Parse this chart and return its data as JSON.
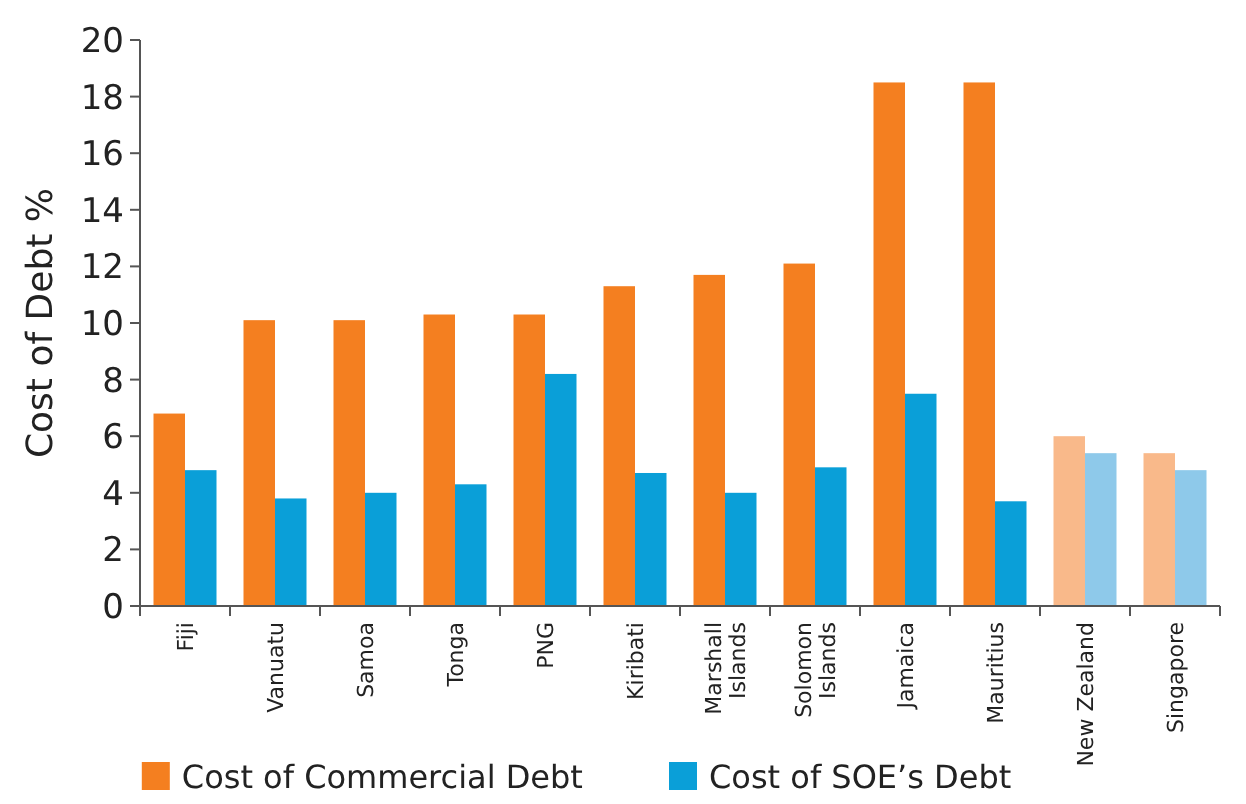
{
  "chart_data": {
    "type": "bar",
    "ylabel": "Cost of Debt %",
    "categories": [
      "Fiji",
      "Vanuatu",
      "Samoa",
      "Tonga",
      "PNG",
      "Kiribati",
      "Marshall Islands",
      "Solomon Islands",
      "Jamaica",
      "Mauritius",
      "New Zealand",
      "Singapore"
    ],
    "series": [
      {
        "name": "Cost of Commercial Debt",
        "color": "#f47f20",
        "colors": [
          "#f47f20",
          "#f47f20",
          "#f47f20",
          "#f47f20",
          "#f47f20",
          "#f47f20",
          "#f47f20",
          "#f47f20",
          "#f47f20",
          "#f47f20",
          "#f9b98a",
          "#f9b98a"
        ],
        "values": [
          6.8,
          10.1,
          10.1,
          10.3,
          10.3,
          11.3,
          11.7,
          12.1,
          18.5,
          18.5,
          6.0,
          5.4
        ]
      },
      {
        "name": "Cost of SOE’s Debt",
        "color": "#0a9fd8",
        "colors": [
          "#0a9fd8",
          "#0a9fd8",
          "#0a9fd8",
          "#0a9fd8",
          "#0a9fd8",
          "#0a9fd8",
          "#0a9fd8",
          "#0a9fd8",
          "#0a9fd8",
          "#0a9fd8",
          "#8ec9ea",
          "#8ec9ea"
        ],
        "values": [
          4.8,
          3.8,
          4.0,
          4.3,
          8.2,
          4.7,
          4.0,
          4.9,
          7.5,
          3.7,
          5.4,
          4.8
        ]
      }
    ],
    "ylim": [
      0,
      20
    ],
    "yticks": [
      0,
      2,
      4,
      6,
      8,
      10,
      12,
      14,
      16,
      18,
      20
    ],
    "grid": false,
    "legend": "bottom"
  }
}
